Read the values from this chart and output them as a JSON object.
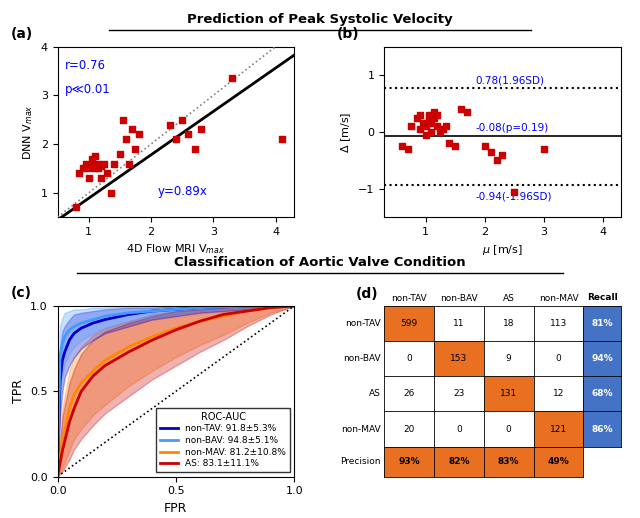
{
  "title_top": "Prediction of Peak Systolic Velocity",
  "title_bottom": "Classification of Aortic Valve Condition",
  "scatter_a_x": [
    0.8,
    0.85,
    0.9,
    0.95,
    1.0,
    1.0,
    1.05,
    1.05,
    1.1,
    1.1,
    1.15,
    1.15,
    1.2,
    1.2,
    1.25,
    1.3,
    1.35,
    1.4,
    1.5,
    1.55,
    1.6,
    1.65,
    1.7,
    1.75,
    1.8,
    2.3,
    2.4,
    2.5,
    2.6,
    2.7,
    2.8,
    3.3,
    4.1
  ],
  "scatter_a_y": [
    0.7,
    1.4,
    1.5,
    1.6,
    1.3,
    1.5,
    1.6,
    1.7,
    1.5,
    1.75,
    1.5,
    1.6,
    1.3,
    1.55,
    1.6,
    1.4,
    1.0,
    1.6,
    1.8,
    2.5,
    2.1,
    1.6,
    2.3,
    1.9,
    2.2,
    2.4,
    2.1,
    2.5,
    2.2,
    1.9,
    2.3,
    3.35,
    2.1
  ],
  "scatter_b_x": [
    0.6,
    0.7,
    0.75,
    0.85,
    0.9,
    0.9,
    0.95,
    1.0,
    1.0,
    1.05,
    1.05,
    1.1,
    1.1,
    1.15,
    1.15,
    1.2,
    1.2,
    1.25,
    1.3,
    1.35,
    1.4,
    1.5,
    1.6,
    1.7,
    2.0,
    2.1,
    2.2,
    2.3,
    2.5,
    3.0
  ],
  "scatter_b_y": [
    -0.25,
    -0.3,
    0.1,
    0.25,
    0.05,
    0.3,
    0.15,
    -0.05,
    0.1,
    0.2,
    0.3,
    0.0,
    0.15,
    0.25,
    0.35,
    0.1,
    0.3,
    0.0,
    0.05,
    0.1,
    -0.2,
    -0.25,
    0.4,
    0.35,
    -0.25,
    -0.35,
    -0.5,
    -0.4,
    -1.05,
    -0.3
  ],
  "line_mean": -0.08,
  "line_upper": 0.78,
  "line_lower": -0.94,
  "roc_fpr_tav": [
    0.0,
    0.01,
    0.02,
    0.03,
    0.05,
    0.07,
    0.1,
    0.15,
    0.2,
    0.3,
    0.4,
    0.5,
    0.6,
    0.7,
    0.8,
    0.9,
    1.0
  ],
  "roc_tpr_tav": [
    0.0,
    0.55,
    0.68,
    0.73,
    0.8,
    0.84,
    0.87,
    0.9,
    0.92,
    0.95,
    0.97,
    0.98,
    0.99,
    0.995,
    0.998,
    1.0,
    1.0
  ],
  "roc_tpr_tav_lo": [
    0.0,
    0.35,
    0.5,
    0.58,
    0.65,
    0.7,
    0.75,
    0.8,
    0.84,
    0.88,
    0.92,
    0.94,
    0.96,
    0.97,
    0.98,
    0.99,
    1.0
  ],
  "roc_tpr_tav_hi": [
    0.0,
    0.75,
    0.85,
    0.88,
    0.92,
    0.95,
    0.96,
    0.97,
    0.98,
    0.99,
    0.99,
    1.0,
    1.0,
    1.0,
    1.0,
    1.0,
    1.0
  ],
  "roc_fpr_bav": [
    0.0,
    0.01,
    0.02,
    0.03,
    0.05,
    0.07,
    0.1,
    0.15,
    0.2,
    0.3,
    0.4,
    0.5,
    0.6,
    0.7,
    0.8,
    0.9,
    1.0
  ],
  "roc_tpr_bav": [
    0.0,
    0.7,
    0.78,
    0.82,
    0.86,
    0.88,
    0.9,
    0.92,
    0.94,
    0.96,
    0.97,
    0.98,
    0.99,
    0.995,
    0.998,
    1.0,
    1.0
  ],
  "roc_tpr_bav_lo": [
    0.0,
    0.5,
    0.6,
    0.66,
    0.72,
    0.76,
    0.8,
    0.84,
    0.87,
    0.91,
    0.93,
    0.95,
    0.97,
    0.98,
    0.99,
    1.0,
    1.0
  ],
  "roc_tpr_bav_hi": [
    0.0,
    0.88,
    0.93,
    0.96,
    0.97,
    0.98,
    0.98,
    0.99,
    0.99,
    1.0,
    1.0,
    1.0,
    1.0,
    1.0,
    1.0,
    1.0,
    1.0
  ],
  "roc_fpr_mav": [
    0.0,
    0.02,
    0.05,
    0.07,
    0.1,
    0.15,
    0.2,
    0.3,
    0.4,
    0.5,
    0.6,
    0.7,
    0.8,
    0.9,
    1.0
  ],
  "roc_tpr_mav": [
    0.0,
    0.2,
    0.4,
    0.48,
    0.55,
    0.62,
    0.68,
    0.76,
    0.82,
    0.87,
    0.91,
    0.94,
    0.97,
    0.99,
    1.0
  ],
  "roc_tpr_mav_lo": [
    0.0,
    0.05,
    0.15,
    0.22,
    0.28,
    0.36,
    0.42,
    0.53,
    0.62,
    0.7,
    0.77,
    0.83,
    0.9,
    0.96,
    1.0
  ],
  "roc_tpr_mav_hi": [
    0.0,
    0.4,
    0.62,
    0.7,
    0.76,
    0.83,
    0.87,
    0.91,
    0.95,
    0.97,
    0.98,
    0.99,
    1.0,
    1.0,
    1.0
  ],
  "roc_fpr_as": [
    0.0,
    0.02,
    0.05,
    0.07,
    0.1,
    0.15,
    0.2,
    0.3,
    0.4,
    0.5,
    0.6,
    0.7,
    0.8,
    0.9,
    1.0
  ],
  "roc_tpr_as": [
    0.0,
    0.15,
    0.32,
    0.4,
    0.5,
    0.59,
    0.65,
    0.73,
    0.8,
    0.86,
    0.91,
    0.95,
    0.97,
    0.99,
    1.0
  ],
  "roc_tpr_as_lo": [
    0.0,
    0.03,
    0.1,
    0.16,
    0.22,
    0.3,
    0.37,
    0.47,
    0.57,
    0.65,
    0.73,
    0.8,
    0.88,
    0.95,
    1.0
  ],
  "roc_tpr_as_hi": [
    0.0,
    0.35,
    0.55,
    0.63,
    0.72,
    0.8,
    0.85,
    0.9,
    0.94,
    0.97,
    0.98,
    0.99,
    1.0,
    1.0,
    1.0
  ],
  "cm_values": [
    [
      599,
      11,
      18,
      113
    ],
    [
      0,
      153,
      9,
      0
    ],
    [
      26,
      23,
      131,
      12
    ],
    [
      20,
      0,
      0,
      121
    ]
  ],
  "cm_row_labels": [
    "non-TAV",
    "non-BAV",
    "AS",
    "non-MAV"
  ],
  "cm_col_labels": [
    "non-TAV",
    "non-BAV",
    "AS",
    "non-MAV"
  ],
  "cm_precision": [
    "93%",
    "82%",
    "83%",
    "49%"
  ],
  "cm_recall": [
    "81%",
    "94%",
    "68%",
    "86%"
  ],
  "color_tav": "#0000CC",
  "color_bav": "#4499FF",
  "color_mav": "#FF8800",
  "color_as": "#CC0000",
  "color_marker": "#CC0000",
  "cm_color_diag": "#E87020",
  "cm_color_offdiag": "#FFFFFF",
  "cm_color_recall": "#4472C4",
  "cm_color_precision": "#E87020",
  "label_a_r": "r=0.76",
  "label_a_p": "p≪0.01",
  "label_a_y": "y=0.89x",
  "label_b_upper": "0.78(1.96SD)",
  "label_b_mean": "-0.08(p=0.19)",
  "label_b_lower": "-0.94(-1.96SD)"
}
